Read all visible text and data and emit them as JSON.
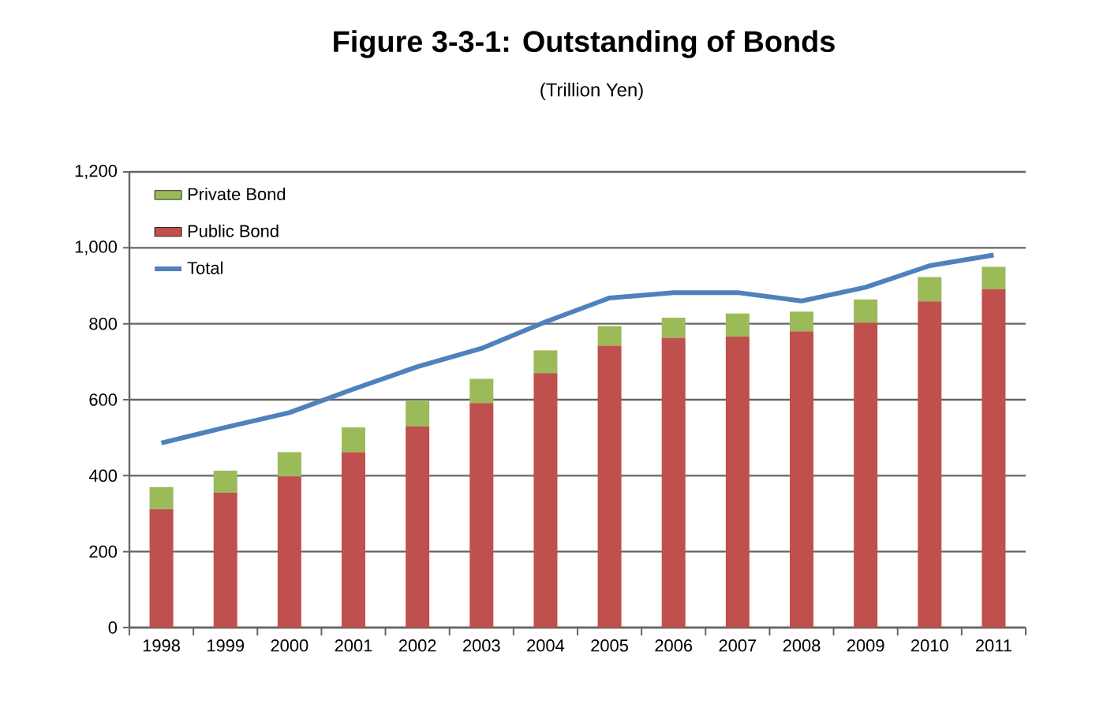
{
  "chart_data": {
    "type": "bar",
    "stacked": true,
    "title": "Figure 3-3-1: Outstanding of Bonds",
    "subtitle": "(Trillion Yen)",
    "categories": [
      "1998",
      "1999",
      "2000",
      "2001",
      "2002",
      "2003",
      "2004",
      "2005",
      "2006",
      "2007",
      "2008",
      "2009",
      "2010",
      "2011"
    ],
    "series": [
      {
        "name": "Public Bond",
        "color": "#c0504d",
        "values": [
          312,
          355,
          398,
          462,
          530,
          591,
          670,
          742,
          763,
          766,
          780,
          803,
          859,
          891
        ]
      },
      {
        "name": "Private Bond",
        "color": "#9bbb59",
        "values": [
          58,
          58,
          64,
          65,
          67,
          64,
          60,
          52,
          53,
          61,
          52,
          61,
          64,
          59
        ]
      },
      {
        "name": "Total",
        "type": "line",
        "color": "#4f81bd",
        "values": [
          486,
          527,
          566,
          628,
          687,
          735,
          805,
          868,
          882,
          882,
          860,
          896,
          953,
          981
        ]
      }
    ],
    "ylim": [
      0,
      1200
    ],
    "yticks": [
      0,
      200,
      400,
      600,
      800,
      {
        "value": 1000,
        "label": "1,000"
      },
      {
        "value": 1200,
        "label": "1,200"
      }
    ],
    "grid": "y",
    "legend": "top left",
    "marker": "none",
    "line_style": "solid"
  }
}
